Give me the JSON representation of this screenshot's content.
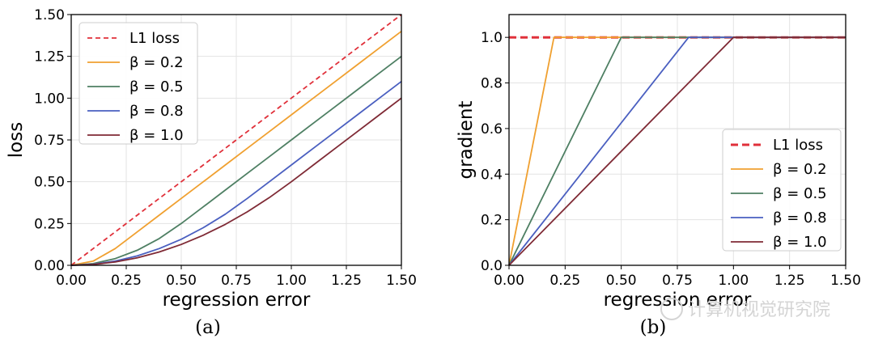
{
  "chart_data": [
    {
      "type": "line",
      "title": "",
      "xlabel": "regression error",
      "ylabel": "loss",
      "caption": "(a)",
      "xlim": [
        0,
        1.5
      ],
      "ylim": [
        0,
        1.5
      ],
      "xticks": [
        "0.00",
        "0.25",
        "0.50",
        "0.75",
        "1.00",
        "1.25",
        "1.50"
      ],
      "yticks": [
        "0.00",
        "0.25",
        "0.50",
        "0.75",
        "1.00",
        "1.25",
        "1.50"
      ],
      "grid": true,
      "legend_position": "top-left",
      "x": [
        0,
        0.1,
        0.2,
        0.3,
        0.4,
        0.5,
        0.6,
        0.7,
        0.8,
        0.9,
        1.0,
        1.1,
        1.2,
        1.3,
        1.4,
        1.5
      ],
      "series": [
        {
          "name": "L1 loss",
          "color": "#e0303a",
          "dashed": true,
          "values": [
            0,
            0.1,
            0.2,
            0.3,
            0.4,
            0.5,
            0.6,
            0.7,
            0.8,
            0.9,
            1.0,
            1.1,
            1.2,
            1.3,
            1.4,
            1.5
          ]
        },
        {
          "name": "β = 0.2",
          "color": "#f0a030",
          "dashed": false,
          "values": [
            0,
            0.025,
            0.1,
            0.2,
            0.3,
            0.4,
            0.5,
            0.6,
            0.7,
            0.8,
            0.9,
            1.0,
            1.1,
            1.2,
            1.3,
            1.4
          ]
        },
        {
          "name": "β = 0.5",
          "color": "#4e7f63",
          "dashed": false,
          "values": [
            0,
            0.01,
            0.04,
            0.09,
            0.16,
            0.25,
            0.35,
            0.45,
            0.55,
            0.65,
            0.75,
            0.85,
            0.95,
            1.05,
            1.15,
            1.25
          ]
        },
        {
          "name": "β = 0.8",
          "color": "#4a5fc0",
          "dashed": false,
          "values": [
            0,
            0.006,
            0.025,
            0.056,
            0.1,
            0.156,
            0.225,
            0.306,
            0.4,
            0.5,
            0.6,
            0.7,
            0.8,
            0.9,
            1.0,
            1.1
          ]
        },
        {
          "name": "β = 1.0",
          "color": "#7f2a35",
          "dashed": false,
          "values": [
            0,
            0.005,
            0.02,
            0.045,
            0.08,
            0.125,
            0.18,
            0.245,
            0.32,
            0.405,
            0.5,
            0.6,
            0.7,
            0.8,
            0.9,
            1.0
          ]
        }
      ]
    },
    {
      "type": "line",
      "title": "",
      "xlabel": "regression error",
      "ylabel": "gradient",
      "caption": "(b)",
      "xlim": [
        0,
        1.5
      ],
      "ylim": [
        0,
        1.1
      ],
      "xticks": [
        "0.00",
        "0.25",
        "0.50",
        "0.75",
        "1.00",
        "1.25",
        "1.50"
      ],
      "yticks": [
        "0.0",
        "0.2",
        "0.4",
        "0.6",
        "0.8",
        "1.0"
      ],
      "grid": true,
      "legend_position": "center-right",
      "series": [
        {
          "name": "L1 loss",
          "color": "#e0303a",
          "dashed": true,
          "x": [
            0,
            1.5
          ],
          "values": [
            1.0,
            1.0
          ]
        },
        {
          "name": "β = 0.2",
          "color": "#f0a030",
          "dashed": false,
          "x": [
            0,
            0.2,
            1.5
          ],
          "values": [
            0,
            1.0,
            1.0
          ]
        },
        {
          "name": "β = 0.5",
          "color": "#4e7f63",
          "dashed": false,
          "x": [
            0,
            0.5,
            1.5
          ],
          "values": [
            0,
            1.0,
            1.0
          ]
        },
        {
          "name": "β = 0.8",
          "color": "#4a5fc0",
          "dashed": false,
          "x": [
            0,
            0.8,
            1.5
          ],
          "values": [
            0,
            1.0,
            1.0
          ]
        },
        {
          "name": "β = 1.0",
          "color": "#7f2a35",
          "dashed": false,
          "x": [
            0,
            1.0,
            1.5
          ],
          "values": [
            0,
            1.0,
            1.0
          ]
        }
      ]
    }
  ],
  "watermark": "计算机视觉研究院"
}
